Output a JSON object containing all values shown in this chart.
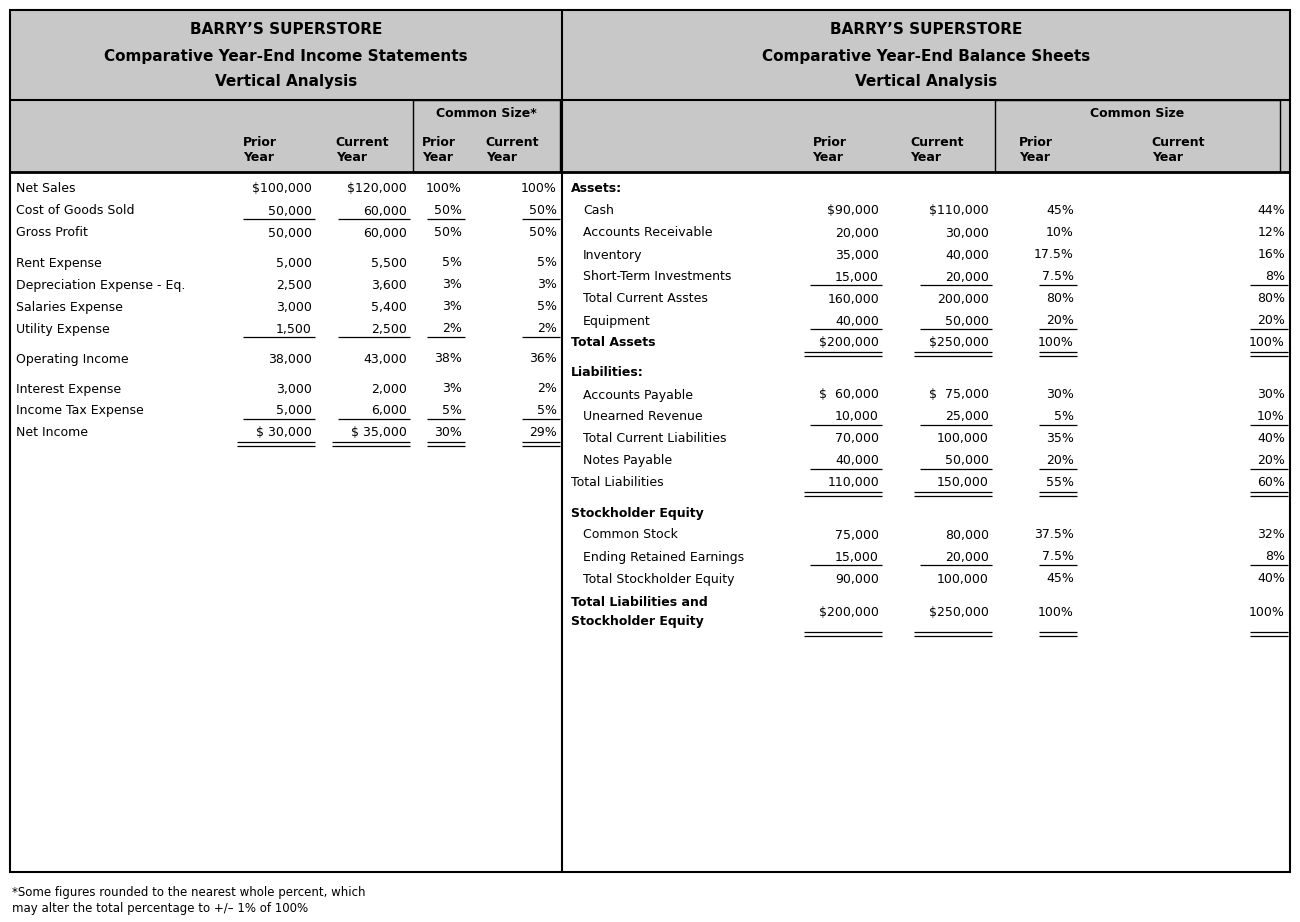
{
  "left_title_line1": "BARRY’S SUPERSTORE",
  "left_title_line2": "Comparative Year-End Income Statements",
  "left_title_line3": "Vertical Analysis",
  "right_title_line1": "BARRY’S SUPERSTORE",
  "right_title_line2": "Comparative Year-End Balance Sheets",
  "right_title_line3": "Vertical Analysis",
  "header_bg": "#c8c8c8",
  "white_bg": "#ffffff",
  "footnote_line1": "*Some figures rounded to the nearest whole percent, which",
  "footnote_line2": "may alter the total percentage to +/– 1% of 100%",
  "left_common_size_header": "Common Size*",
  "right_common_size_header": "Common Size",
  "income_rows": [
    {
      "label": "Net Sales",
      "prior": "$100,000",
      "current": "$120,000",
      "py_pct": "100%",
      "cy_pct": "100%",
      "underline": false,
      "bold": false,
      "double_underline": false
    },
    {
      "label": "Cost of Goods Sold",
      "prior": "50,000",
      "current": "60,000",
      "py_pct": "50%",
      "cy_pct": "50%",
      "underline": true,
      "bold": false,
      "double_underline": false
    },
    {
      "label": "Gross Profit",
      "prior": "50,000",
      "current": "60,000",
      "py_pct": "50%",
      "cy_pct": "50%",
      "underline": false,
      "bold": false,
      "double_underline": false
    },
    {
      "label": "",
      "prior": "",
      "current": "",
      "py_pct": "",
      "cy_pct": "",
      "underline": false,
      "bold": false,
      "double_underline": false
    },
    {
      "label": "Rent Expense",
      "prior": "5,000",
      "current": "5,500",
      "py_pct": "5%",
      "cy_pct": "5%",
      "underline": false,
      "bold": false,
      "double_underline": false
    },
    {
      "label": "Depreciation Expense - Eq.",
      "prior": "2,500",
      "current": "3,600",
      "py_pct": "3%",
      "cy_pct": "3%",
      "underline": false,
      "bold": false,
      "double_underline": false
    },
    {
      "label": "Salaries Expense",
      "prior": "3,000",
      "current": "5,400",
      "py_pct": "3%",
      "cy_pct": "5%",
      "underline": false,
      "bold": false,
      "double_underline": false
    },
    {
      "label": "Utility Expense",
      "prior": "1,500",
      "current": "2,500",
      "py_pct": "2%",
      "cy_pct": "2%",
      "underline": true,
      "bold": false,
      "double_underline": false
    },
    {
      "label": "",
      "prior": "",
      "current": "",
      "py_pct": "",
      "cy_pct": "",
      "underline": false,
      "bold": false,
      "double_underline": false
    },
    {
      "label": "Operating Income",
      "prior": "38,000",
      "current": "43,000",
      "py_pct": "38%",
      "cy_pct": "36%",
      "underline": false,
      "bold": false,
      "double_underline": false
    },
    {
      "label": "",
      "prior": "",
      "current": "",
      "py_pct": "",
      "cy_pct": "",
      "underline": false,
      "bold": false,
      "double_underline": false
    },
    {
      "label": "Interest Expense",
      "prior": "3,000",
      "current": "2,000",
      "py_pct": "3%",
      "cy_pct": "2%",
      "underline": false,
      "bold": false,
      "double_underline": false
    },
    {
      "label": "Income Tax Expense",
      "prior": "5,000",
      "current": "6,000",
      "py_pct": "5%",
      "cy_pct": "5%",
      "underline": true,
      "bold": false,
      "double_underline": false
    },
    {
      "label": "Net Income",
      "prior": "$ 30,000",
      "current": "$ 35,000",
      "py_pct": "30%",
      "cy_pct": "29%",
      "underline": false,
      "bold": false,
      "double_underline": true
    }
  ],
  "balance_rows": [
    {
      "label": "Assets:",
      "prior": "",
      "current": "",
      "py_pct": "",
      "cy_pct": "",
      "underline": false,
      "bold": true,
      "double_underline": false,
      "indent": false
    },
    {
      "label": "Cash",
      "prior": "$90,000",
      "current": "$110,000",
      "py_pct": "45%",
      "cy_pct": "44%",
      "underline": false,
      "bold": false,
      "double_underline": false,
      "indent": true
    },
    {
      "label": "Accounts Receivable",
      "prior": "20,000",
      "current": "30,000",
      "py_pct": "10%",
      "cy_pct": "12%",
      "underline": false,
      "bold": false,
      "double_underline": false,
      "indent": true
    },
    {
      "label": "Inventory",
      "prior": "35,000",
      "current": "40,000",
      "py_pct": "17.5%",
      "cy_pct": "16%",
      "underline": false,
      "bold": false,
      "double_underline": false,
      "indent": true
    },
    {
      "label": "Short-Term Investments",
      "prior": "15,000",
      "current": "20,000",
      "py_pct": "7.5%",
      "cy_pct": "8%",
      "underline": true,
      "bold": false,
      "double_underline": false,
      "indent": true
    },
    {
      "label": "Total Current Asstes",
      "prior": "160,000",
      "current": "200,000",
      "py_pct": "80%",
      "cy_pct": "80%",
      "underline": false,
      "bold": false,
      "double_underline": false,
      "indent": true
    },
    {
      "label": "Equipment",
      "prior": "40,000",
      "current": "50,000",
      "py_pct": "20%",
      "cy_pct": "20%",
      "underline": true,
      "bold": false,
      "double_underline": false,
      "indent": true
    },
    {
      "label": "Total Assets",
      "prior": "$200,000",
      "current": "$250,000",
      "py_pct": "100%",
      "cy_pct": "100%",
      "underline": false,
      "bold": true,
      "double_underline": true,
      "indent": false
    },
    {
      "label": "",
      "prior": "",
      "current": "",
      "py_pct": "",
      "cy_pct": "",
      "underline": false,
      "bold": false,
      "double_underline": false,
      "indent": false
    },
    {
      "label": "Liabilities:",
      "prior": "",
      "current": "",
      "py_pct": "",
      "cy_pct": "",
      "underline": false,
      "bold": true,
      "double_underline": false,
      "indent": false
    },
    {
      "label": "Accounts Payable",
      "prior": "$  60,000",
      "current": "$  75,000",
      "py_pct": "30%",
      "cy_pct": "30%",
      "underline": false,
      "bold": false,
      "double_underline": false,
      "indent": true
    },
    {
      "label": "Unearned Revenue",
      "prior": "10,000",
      "current": "25,000",
      "py_pct": "5%",
      "cy_pct": "10%",
      "underline": true,
      "bold": false,
      "double_underline": false,
      "indent": true
    },
    {
      "label": "Total Current Liabilities",
      "prior": "70,000",
      "current": "100,000",
      "py_pct": "35%",
      "cy_pct": "40%",
      "underline": false,
      "bold": false,
      "double_underline": false,
      "indent": true
    },
    {
      "label": "Notes Payable",
      "prior": "40,000",
      "current": "50,000",
      "py_pct": "20%",
      "cy_pct": "20%",
      "underline": true,
      "bold": false,
      "double_underline": false,
      "indent": true
    },
    {
      "label": "Total Liabilities",
      "prior": "110,000",
      "current": "150,000",
      "py_pct": "55%",
      "cy_pct": "60%",
      "underline": false,
      "bold": false,
      "double_underline": true,
      "indent": false
    },
    {
      "label": "",
      "prior": "",
      "current": "",
      "py_pct": "",
      "cy_pct": "",
      "underline": false,
      "bold": false,
      "double_underline": false,
      "indent": false
    },
    {
      "label": "Stockholder Equity",
      "prior": "",
      "current": "",
      "py_pct": "",
      "cy_pct": "",
      "underline": false,
      "bold": true,
      "double_underline": false,
      "indent": false
    },
    {
      "label": "Common Stock",
      "prior": "75,000",
      "current": "80,000",
      "py_pct": "37.5%",
      "cy_pct": "32%",
      "underline": false,
      "bold": false,
      "double_underline": false,
      "indent": true
    },
    {
      "label": "Ending Retained Earnings",
      "prior": "15,000",
      "current": "20,000",
      "py_pct": "7.5%",
      "cy_pct": "8%",
      "underline": true,
      "bold": false,
      "double_underline": false,
      "indent": true
    },
    {
      "label": "Total Stockholder Equity",
      "prior": "90,000",
      "current": "100,000",
      "py_pct": "45%",
      "cy_pct": "40%",
      "underline": false,
      "bold": false,
      "double_underline": false,
      "indent": true
    },
    {
      "label": "Total Liabilities and\nStockholder Equity",
      "prior": "$200,000",
      "current": "$250,000",
      "py_pct": "100%",
      "cy_pct": "100%",
      "underline": false,
      "bold": true,
      "double_underline": true,
      "indent": false
    }
  ]
}
